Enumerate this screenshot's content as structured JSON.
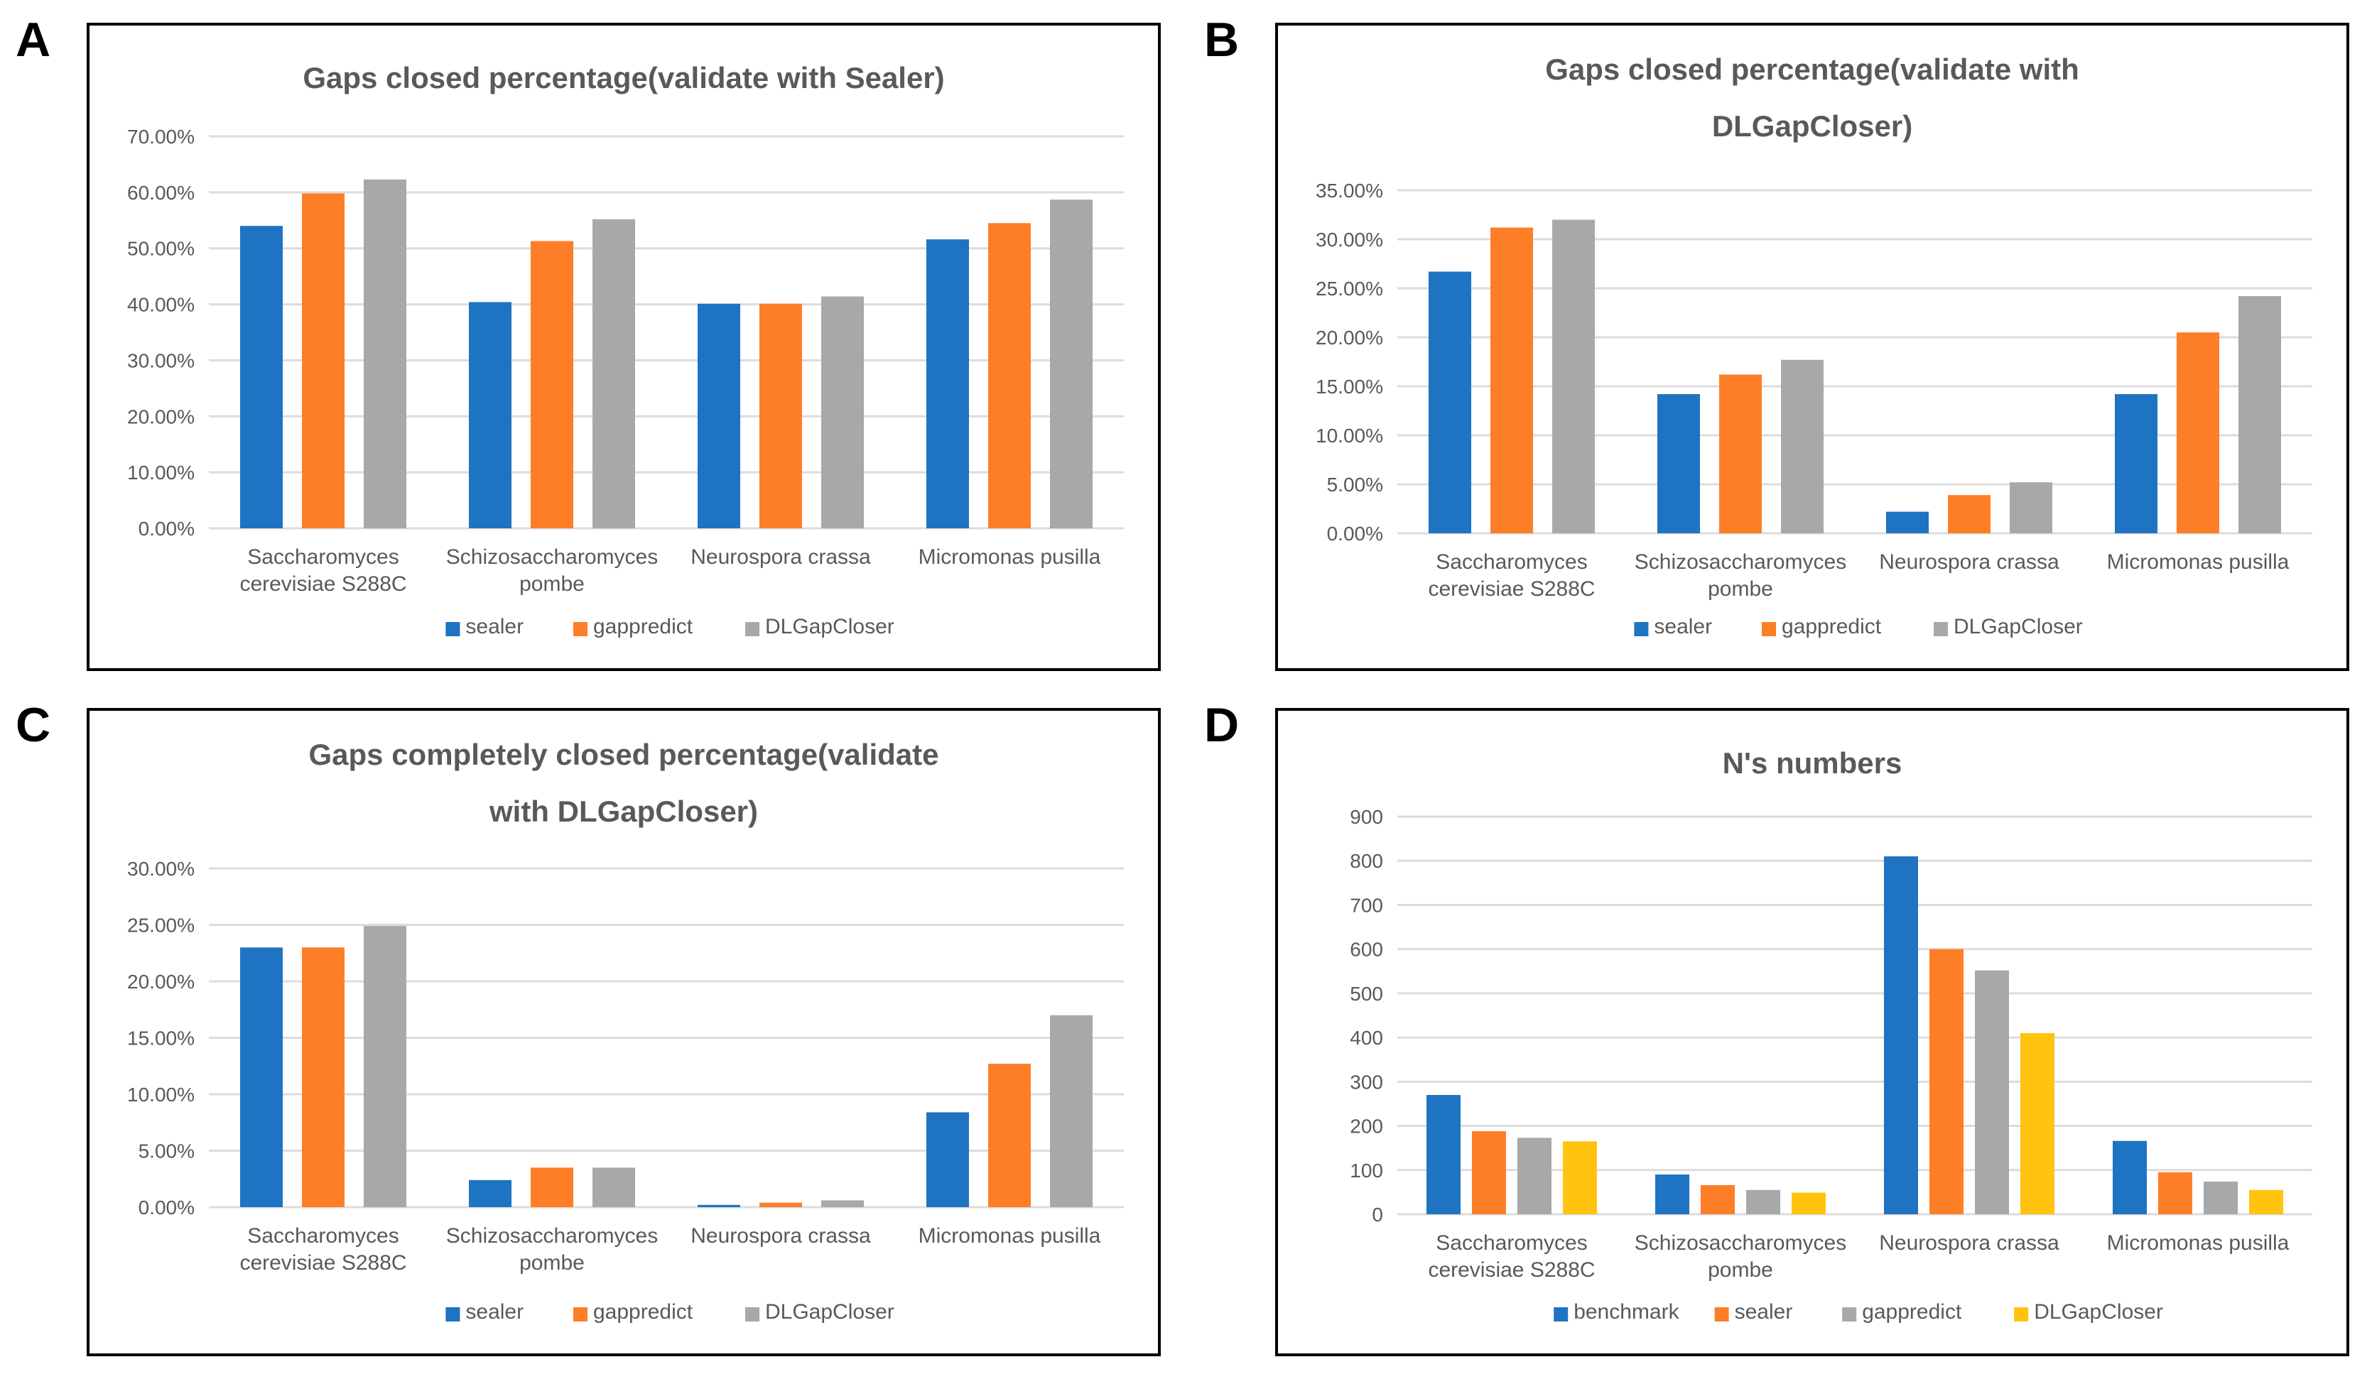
{
  "figure": {
    "background": "#ffffff",
    "panel_letters": [
      "A",
      "B",
      "C",
      "D"
    ]
  },
  "colors": {
    "blue": "#1E73C2",
    "orange": "#FD7E27",
    "gray": "#A8A8A8",
    "yellow": "#FFC310",
    "title_text": "#595959",
    "axis_text": "#595959",
    "gridline": "#DCDCDC",
    "panel_border": "#000000"
  },
  "chart_data": [
    {
      "type": "bar",
      "panel": "A",
      "title": "Gaps closed percentage(validate with Sealer)",
      "title_lines": [
        "Gaps closed percentage(validate with Sealer)"
      ],
      "categories": [
        "Saccharomyces cerevisiae S288C",
        "Schizosaccharomyces pombe",
        "Neurospora crassa",
        "Micromonas pusilla"
      ],
      "category_lines": [
        [
          "Saccharomyces",
          "cerevisiae S288C"
        ],
        [
          "Schizosaccharomyces",
          "pombe"
        ],
        [
          "Neurospora crassa"
        ],
        [
          "Micromonas pusilla"
        ]
      ],
      "series": [
        {
          "name": "sealer",
          "color_key": "blue",
          "values": [
            54.0,
            40.4,
            40.1,
            51.6
          ]
        },
        {
          "name": "gappredict",
          "color_key": "orange",
          "values": [
            59.8,
            51.3,
            40.1,
            54.5
          ]
        },
        {
          "name": "DLGapCloser",
          "color_key": "gray",
          "values": [
            62.3,
            55.2,
            41.4,
            58.7
          ]
        }
      ],
      "xlabel": "",
      "ylabel": "",
      "ylim": [
        0,
        70
      ],
      "ytick_step": 10,
      "ytick_labels": [
        "0.00%",
        "10.00%",
        "20.00%",
        "30.00%",
        "40.00%",
        "50.00%",
        "60.00%",
        "70.00%"
      ],
      "grid": true,
      "legend_position": "bottom"
    },
    {
      "type": "bar",
      "panel": "B",
      "title": "Gaps closed percentage(validate with DLGapCloser)",
      "title_lines": [
        "Gaps closed percentage(validate with",
        "DLGapCloser)"
      ],
      "categories": [
        "Saccharomyces cerevisiae S288C",
        "Schizosaccharomyces pombe",
        "Neurospora crassa",
        "Micromonas pusilla"
      ],
      "category_lines": [
        [
          "Saccharomyces",
          "cerevisiae S288C"
        ],
        [
          "Schizosaccharomyces",
          "pombe"
        ],
        [
          "Neurospora crassa"
        ],
        [
          "Micromonas pusilla"
        ]
      ],
      "series": [
        {
          "name": "sealer",
          "color_key": "blue",
          "values": [
            26.7,
            14.2,
            2.2,
            14.2
          ]
        },
        {
          "name": "gappredict",
          "color_key": "orange",
          "values": [
            31.2,
            16.2,
            3.9,
            20.5
          ]
        },
        {
          "name": "DLGapCloser",
          "color_key": "gray",
          "values": [
            32.0,
            17.7,
            5.2,
            24.2
          ]
        }
      ],
      "xlabel": "",
      "ylabel": "",
      "ylim": [
        0,
        35
      ],
      "ytick_step": 5,
      "ytick_labels": [
        "0.00%",
        "5.00%",
        "10.00%",
        "15.00%",
        "20.00%",
        "25.00%",
        "30.00%",
        "35.00%"
      ],
      "grid": true,
      "legend_position": "bottom"
    },
    {
      "type": "bar",
      "panel": "C",
      "title": "Gaps completely closed percentage(validate with DLGapCloser)",
      "title_lines": [
        "Gaps completely closed percentage(validate",
        "with DLGapCloser)"
      ],
      "categories": [
        "Saccharomyces cerevisiae S288C",
        "Schizosaccharomyces pombe",
        "Neurospora crassa",
        "Micromonas pusilla"
      ],
      "category_lines": [
        [
          "Saccharomyces",
          "cerevisiae S288C"
        ],
        [
          "Schizosaccharomyces",
          "pombe"
        ],
        [
          "Neurospora crassa"
        ],
        [
          "Micromonas pusilla"
        ]
      ],
      "series": [
        {
          "name": "sealer",
          "color_key": "blue",
          "values": [
            23.0,
            2.4,
            0.2,
            8.4
          ]
        },
        {
          "name": "gappredict",
          "color_key": "orange",
          "values": [
            23.0,
            3.5,
            0.4,
            12.7
          ]
        },
        {
          "name": "DLGapCloser",
          "color_key": "gray",
          "values": [
            24.9,
            3.5,
            0.6,
            17.0
          ]
        }
      ],
      "xlabel": "",
      "ylabel": "",
      "ylim": [
        0,
        30
      ],
      "ytick_step": 5,
      "ytick_labels": [
        "0.00%",
        "5.00%",
        "10.00%",
        "15.00%",
        "20.00%",
        "25.00%",
        "30.00%"
      ],
      "grid": true,
      "legend_position": "bottom"
    },
    {
      "type": "bar",
      "panel": "D",
      "title": "N's numbers",
      "title_lines": [
        "N's numbers"
      ],
      "categories": [
        "Saccharomyces cerevisiae S288C",
        "Schizosaccharomyces pombe",
        "Neurospora crassa",
        "Micromonas pusilla"
      ],
      "category_lines": [
        [
          "Saccharomyces",
          "cerevisiae S288C"
        ],
        [
          "Schizosaccharomyces",
          "pombe"
        ],
        [
          "Neurospora crassa"
        ],
        [
          "Micromonas pusilla"
        ]
      ],
      "series": [
        {
          "name": "benchmark",
          "color_key": "blue",
          "values": [
            270,
            90,
            810,
            166
          ]
        },
        {
          "name": "sealer",
          "color_key": "orange",
          "values": [
            188,
            66,
            600,
            95
          ]
        },
        {
          "name": "gappredict",
          "color_key": "gray",
          "values": [
            173,
            55,
            552,
            74
          ]
        },
        {
          "name": "DLGapCloser",
          "color_key": "yellow",
          "values": [
            165,
            49,
            410,
            55
          ]
        }
      ],
      "xlabel": "",
      "ylabel": "",
      "ylim": [
        0,
        900
      ],
      "ytick_step": 100,
      "ytick_labels": [
        "0",
        "100",
        "200",
        "300",
        "400",
        "500",
        "600",
        "700",
        "800",
        "900"
      ],
      "grid": true,
      "legend_position": "bottom"
    }
  ]
}
